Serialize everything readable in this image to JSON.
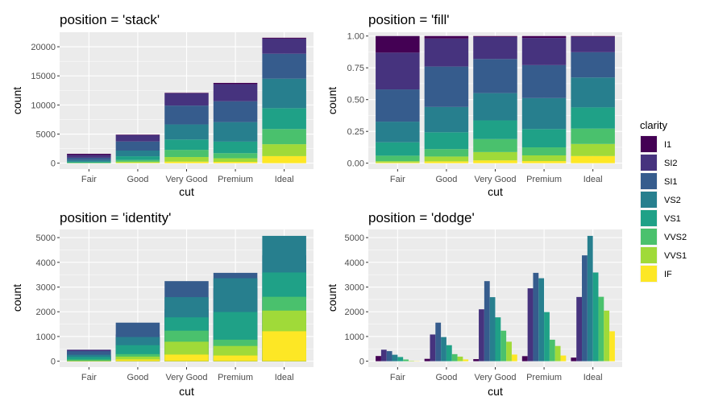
{
  "legend": {
    "title": "clarity",
    "placement": "right",
    "items": [
      {
        "label": "I1",
        "color": "#440154"
      },
      {
        "label": "SI2",
        "color": "#46337E"
      },
      {
        "label": "SI1",
        "color": "#365C8D"
      },
      {
        "label": "VS2",
        "color": "#277F8E"
      },
      {
        "label": "VS1",
        "color": "#1FA187"
      },
      {
        "label": "VVS2",
        "color": "#4AC16D"
      },
      {
        "label": "VVS1",
        "color": "#A0DA39"
      },
      {
        "label": "IF",
        "color": "#FDE725"
      }
    ]
  },
  "chart_data": [
    {
      "type": "bar",
      "title": "position = 'stack'",
      "xlabel": "cut",
      "ylabel": "count",
      "ylim": [
        0,
        22500
      ],
      "yticks": [
        0,
        5000,
        10000,
        15000,
        20000
      ],
      "ytick_labels": [
        "0",
        "5000",
        "10000",
        "15000",
        "20000"
      ],
      "categories": [
        "Fair",
        "Good",
        "Very Good",
        "Premium",
        "Ideal"
      ],
      "grid": true,
      "series": [
        {
          "name": "I1",
          "values": [
            210,
            96,
            84,
            205,
            146
          ]
        },
        {
          "name": "SI2",
          "values": [
            466,
            1081,
            2100,
            2949,
            2598
          ]
        },
        {
          "name": "SI1",
          "values": [
            408,
            1560,
            3240,
            3575,
            4282
          ]
        },
        {
          "name": "VS2",
          "values": [
            261,
            978,
            2591,
            3357,
            5071
          ]
        },
        {
          "name": "VS1",
          "values": [
            170,
            648,
            1775,
            1989,
            3589
          ]
        },
        {
          "name": "VVS2",
          "values": [
            69,
            286,
            1235,
            870,
            2606
          ]
        },
        {
          "name": "VVS1",
          "values": [
            17,
            186,
            789,
            616,
            2047
          ]
        },
        {
          "name": "IF",
          "values": [
            9,
            71,
            268,
            230,
            1212
          ]
        }
      ]
    },
    {
      "type": "bar",
      "title": "position = 'fill'",
      "xlabel": "cut",
      "ylabel": "count",
      "ylim": [
        0,
        1.03
      ],
      "yticks": [
        0,
        0.25,
        0.5,
        0.75,
        1.0
      ],
      "ytick_labels": [
        "0.00",
        "0.25",
        "0.50",
        "0.75",
        "1.00"
      ],
      "categories": [
        "Fair",
        "Good",
        "Very Good",
        "Premium",
        "Ideal"
      ],
      "grid": true,
      "series": [
        {
          "name": "I1",
          "values": [
            210,
            96,
            84,
            205,
            146
          ]
        },
        {
          "name": "SI2",
          "values": [
            466,
            1081,
            2100,
            2949,
            2598
          ]
        },
        {
          "name": "SI1",
          "values": [
            408,
            1560,
            3240,
            3575,
            4282
          ]
        },
        {
          "name": "VS2",
          "values": [
            261,
            978,
            2591,
            3357,
            5071
          ]
        },
        {
          "name": "VS1",
          "values": [
            170,
            648,
            1775,
            1989,
            3589
          ]
        },
        {
          "name": "VVS2",
          "values": [
            69,
            286,
            1235,
            870,
            2606
          ]
        },
        {
          "name": "VVS1",
          "values": [
            17,
            186,
            789,
            616,
            2047
          ]
        },
        {
          "name": "IF",
          "values": [
            9,
            71,
            268,
            230,
            1212
          ]
        }
      ]
    },
    {
      "type": "bar",
      "title": "position = 'identity'",
      "xlabel": "cut",
      "ylabel": "count",
      "ylim": [
        0,
        5330
      ],
      "yticks": [
        0,
        1000,
        2000,
        3000,
        4000,
        5000
      ],
      "ytick_labels": [
        "0",
        "1000",
        "2000",
        "3000",
        "4000",
        "5000"
      ],
      "categories": [
        "Fair",
        "Good",
        "Very Good",
        "Premium",
        "Ideal"
      ],
      "grid": true,
      "series": [
        {
          "name": "I1",
          "values": [
            210,
            96,
            84,
            205,
            146
          ]
        },
        {
          "name": "SI2",
          "values": [
            466,
            1081,
            2100,
            2949,
            2598
          ]
        },
        {
          "name": "SI1",
          "values": [
            408,
            1560,
            3240,
            3575,
            4282
          ]
        },
        {
          "name": "VS2",
          "values": [
            261,
            978,
            2591,
            3357,
            5071
          ]
        },
        {
          "name": "VS1",
          "values": [
            170,
            648,
            1775,
            1989,
            3589
          ]
        },
        {
          "name": "VVS2",
          "values": [
            69,
            286,
            1235,
            870,
            2606
          ]
        },
        {
          "name": "VVS1",
          "values": [
            17,
            186,
            789,
            616,
            2047
          ]
        },
        {
          "name": "IF",
          "values": [
            9,
            71,
            268,
            230,
            1212
          ]
        }
      ]
    },
    {
      "type": "bar",
      "title": "position = 'dodge'",
      "xlabel": "cut",
      "ylabel": "count",
      "ylim": [
        0,
        5330
      ],
      "yticks": [
        0,
        1000,
        2000,
        3000,
        4000,
        5000
      ],
      "ytick_labels": [
        "0",
        "1000",
        "2000",
        "3000",
        "4000",
        "5000"
      ],
      "categories": [
        "Fair",
        "Good",
        "Very Good",
        "Premium",
        "Ideal"
      ],
      "grid": true,
      "series": [
        {
          "name": "I1",
          "values": [
            210,
            96,
            84,
            205,
            146
          ]
        },
        {
          "name": "SI2",
          "values": [
            466,
            1081,
            2100,
            2949,
            2598
          ]
        },
        {
          "name": "SI1",
          "values": [
            408,
            1560,
            3240,
            3575,
            4282
          ]
        },
        {
          "name": "VS2",
          "values": [
            261,
            978,
            2591,
            3357,
            5071
          ]
        },
        {
          "name": "VS1",
          "values": [
            170,
            648,
            1775,
            1989,
            3589
          ]
        },
        {
          "name": "VVS2",
          "values": [
            69,
            286,
            1235,
            870,
            2606
          ]
        },
        {
          "name": "VVS1",
          "values": [
            17,
            186,
            789,
            616,
            2047
          ]
        },
        {
          "name": "IF",
          "values": [
            9,
            71,
            268,
            230,
            1212
          ]
        }
      ]
    }
  ]
}
